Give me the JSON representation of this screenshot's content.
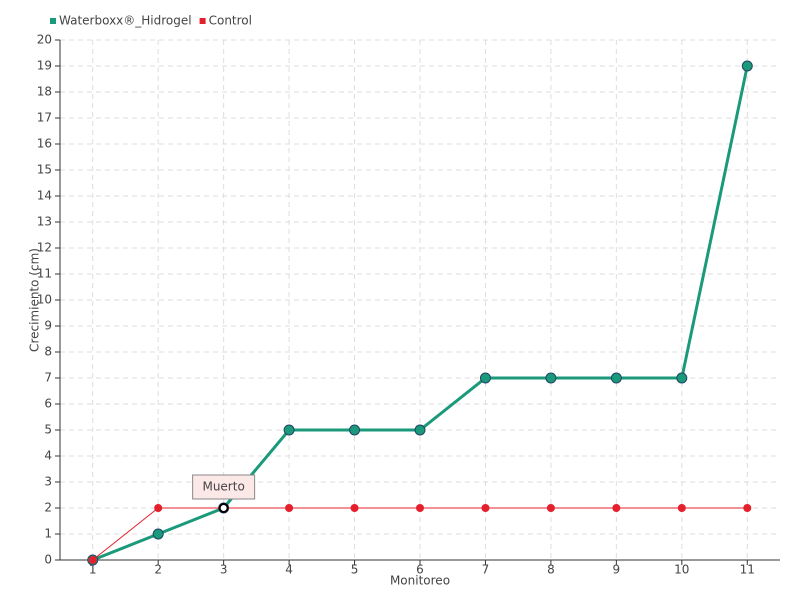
{
  "chart_data": {
    "type": "line",
    "categories": [
      "1",
      "2",
      "3",
      "4",
      "5",
      "6",
      "7",
      "8",
      "9",
      "10",
      "11"
    ],
    "series": [
      {
        "name": "Waterboxx®_Hidrogel",
        "color": "#1a9a7a",
        "values": [
          0,
          1,
          2,
          5,
          5,
          5,
          7,
          7,
          7,
          7,
          19
        ]
      },
      {
        "name": "Control",
        "color": "#e3202b",
        "values": [
          0,
          2,
          2,
          2,
          2,
          2,
          2,
          2,
          2,
          2,
          2
        ]
      }
    ],
    "ylim": [
      0,
      20
    ],
    "yticks": [
      0,
      1,
      2,
      3,
      4,
      5,
      6,
      7,
      8,
      9,
      10,
      11,
      12,
      13,
      14,
      15,
      16,
      17,
      18,
      19,
      20
    ],
    "ylabel": "Crecimiento (cm)",
    "xlabel": "Monitoreo",
    "grid": true,
    "annotation": "Muerto"
  }
}
